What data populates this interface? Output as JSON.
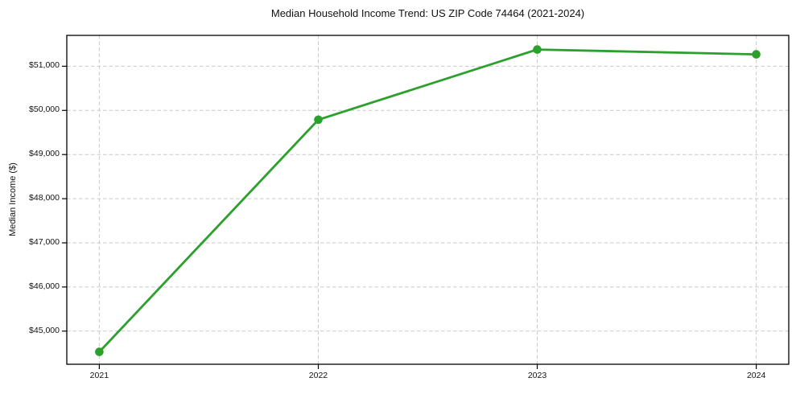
{
  "chart_data": {
    "type": "line",
    "title": "Median Household Income Trend: US ZIP Code 74464 (2021-2024)",
    "xlabel": "",
    "ylabel": "Median Income ($)",
    "x": [
      2021,
      2022,
      2023,
      2024
    ],
    "x_tick_labels": [
      "2021",
      "2022",
      "2023",
      "2024"
    ],
    "series": [
      {
        "name": "Median household income",
        "values": [
          44530,
          49790,
          51380,
          51270
        ],
        "color": "#2ca02c",
        "marker": "circle"
      }
    ],
    "y_ticks": [
      45000,
      46000,
      47000,
      48000,
      49000,
      50000,
      51000
    ],
    "y_tick_labels": [
      "$45,000",
      "$46,000",
      "$47,000",
      "$48,000",
      "$49,000",
      "$50,000",
      "$51,000"
    ],
    "ylim": [
      44250,
      51700
    ],
    "grid": true,
    "grid_style": "dashed",
    "legend_position": "none",
    "colors": {
      "line": "#2ca02c",
      "grid": "#c9c9c9",
      "axis": "#000000",
      "text": "#111111",
      "background": "#ffffff"
    }
  }
}
